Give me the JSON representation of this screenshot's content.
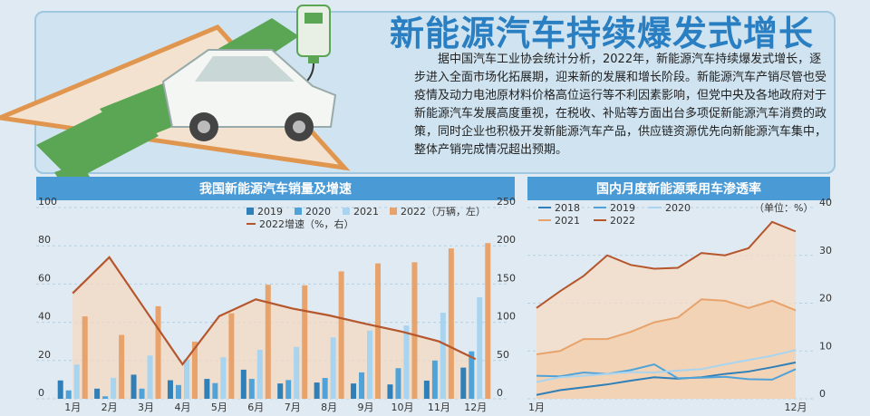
{
  "header": {
    "title": "新能源汽车持续爆发式增长",
    "intro": "据中国汽车工业协会统计分析，2022年，新能源汽车持续爆发式增长，逐步进入全面市场化拓展期，迎来新的发展和增长阶段。新能源汽车产销尽管也受疫情及动力电池原材料价格高位运行等不利因素影响，但党中央及各地政府对于新能源汽车发展高度重视，在税收、补贴等方面出台多项促新能源汽车消费的政策，同时企业也积极开发新能源汽车产品，供应链资源优先向新能源汽车集中，整体产销完成情况超出预期。",
    "logo_text": "EV"
  },
  "chart_data": [
    {
      "type": "bar",
      "title": "我国新能源汽车销量及增速",
      "categories": [
        "1月",
        "2月",
        "3月",
        "4月",
        "5月",
        "6月",
        "7月",
        "8月",
        "9月",
        "10月",
        "11月",
        "12月"
      ],
      "series": [
        {
          "name": "2019",
          "color": "#2f7fb8",
          "values": [
            9.6,
            5.3,
            12.6,
            9.7,
            10.4,
            15.2,
            8.0,
            8.5,
            8.0,
            7.5,
            9.5,
            16.3
          ]
        },
        {
          "name": "2020",
          "color": "#4fa3d9",
          "values": [
            4.4,
            1.3,
            5.3,
            7.2,
            8.2,
            10.4,
            9.8,
            10.9,
            13.8,
            16.0,
            20.0,
            24.8
          ]
        },
        {
          "name": "2021",
          "color": "#a8d4ef",
          "values": [
            17.9,
            11.0,
            22.6,
            20.6,
            21.7,
            25.6,
            27.1,
            32.1,
            35.7,
            38.3,
            45.0,
            53.1
          ]
        },
        {
          "name": "2022（万辆，左）",
          "color": "#e7a36b",
          "values": [
            43.1,
            33.4,
            48.4,
            29.9,
            44.7,
            59.6,
            59.3,
            66.6,
            70.8,
            71.4,
            78.6,
            81.4
          ]
        }
      ],
      "line": {
        "name": "2022增速（%，右）",
        "color": "#b5562d",
        "values": [
          138,
          185,
          115,
          45,
          108,
          130,
          118,
          109,
          98,
          87.6,
          75,
          51.8
        ]
      },
      "ylim_left": [
        0,
        100
      ],
      "ylim_right": [
        0,
        250
      ],
      "yticks_left": [
        "0",
        "20",
        "40",
        "60",
        "80",
        "100"
      ],
      "yticks_right": [
        "0",
        "50",
        "100",
        "150",
        "200",
        "250"
      ]
    },
    {
      "type": "line",
      "title": "国内月度新能源乘用车渗透率",
      "unit": "（单位：%）",
      "x": [
        "1月",
        "2月",
        "3月",
        "4月",
        "5月",
        "6月",
        "7月",
        "8月",
        "9月",
        "10月",
        "11月",
        "12月"
      ],
      "x_tick_labels": [
        "1月",
        "12月"
      ],
      "series": [
        {
          "name": "2018",
          "color": "#2f7fb8",
          "values": [
            0.8,
            1.8,
            2.4,
            3.0,
            3.8,
            4.5,
            4.2,
            4.5,
            5.2,
            5.7,
            6.6,
            7.6
          ]
        },
        {
          "name": "2019",
          "color": "#4fa3d9",
          "values": [
            4.8,
            4.7,
            5.5,
            5.2,
            6.0,
            7.2,
            4.3,
            4.4,
            4.6,
            4.1,
            4.0,
            6.2
          ]
        },
        {
          "name": "2020",
          "color": "#a8d4ef",
          "values": [
            3.5,
            4.5,
            4.8,
            5.2,
            5.6,
            5.5,
            5.9,
            6.2,
            7.2,
            8.1,
            9.0,
            10.2
          ]
        },
        {
          "name": "2021",
          "color": "#e7a36b",
          "values": [
            9.3,
            10.0,
            12.5,
            12.5,
            14.0,
            16.0,
            17.0,
            20.8,
            20.5,
            19.0,
            20.5,
            18.5
          ]
        },
        {
          "name": "2022",
          "color": "#b5562d",
          "values": [
            19.0,
            22.5,
            25.7,
            30.0,
            28.0,
            27.2,
            27.4,
            30.5,
            30.0,
            31.5,
            37.0,
            35.0
          ]
        }
      ],
      "ylim": [
        0,
        40
      ],
      "yticks": [
        "0",
        "10",
        "20",
        "30",
        "40"
      ]
    }
  ]
}
